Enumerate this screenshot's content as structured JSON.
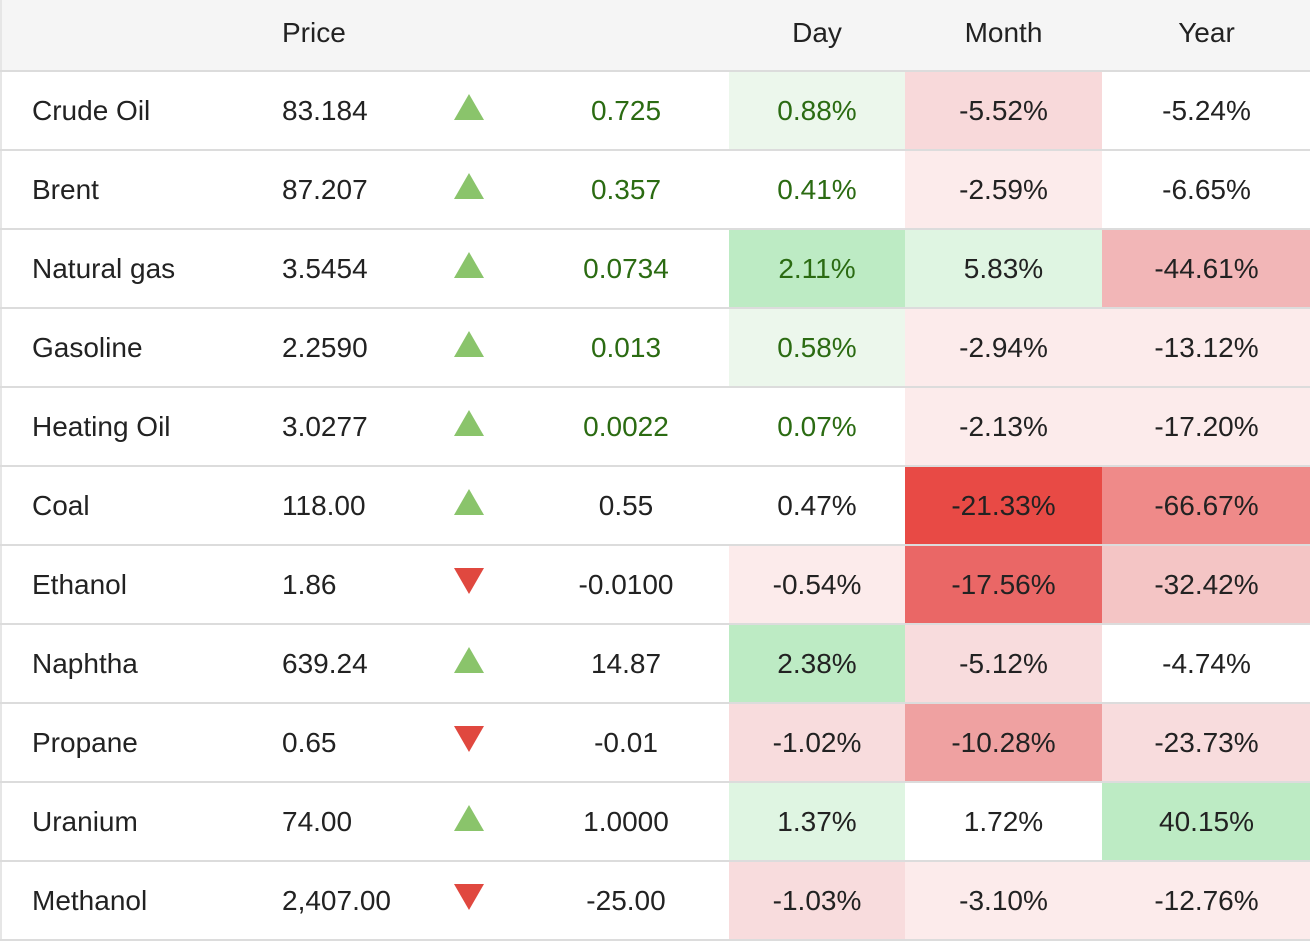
{
  "header": {
    "name": "",
    "price": "Price",
    "arrow": "",
    "change": "",
    "day": "Day",
    "month": "Month",
    "year": "Year"
  },
  "colors": {
    "up_arrow": "#8ac46b",
    "down_arrow": "#e0483f",
    "positive_text": "#2b6b12"
  },
  "rows": [
    {
      "name": "Crude Oil",
      "price": "83.184",
      "direction": "up",
      "change": "0.725",
      "day": "0.88%",
      "month": "-5.52%",
      "year": "-5.24%",
      "change_green": true,
      "day_green": true,
      "day_bg": "#ecf7ec",
      "month_bg": "#f8d9da",
      "year_bg": "#ffffff"
    },
    {
      "name": "Brent",
      "price": "87.207",
      "direction": "up",
      "change": "0.357",
      "day": "0.41%",
      "month": "-2.59%",
      "year": "-6.65%",
      "change_green": true,
      "day_green": true,
      "day_bg": "#ffffff",
      "month_bg": "#fcebeb",
      "year_bg": "#ffffff"
    },
    {
      "name": "Natural gas",
      "price": "3.5454",
      "direction": "up",
      "change": "0.0734",
      "day": "2.11%",
      "month": "5.83%",
      "year": "-44.61%",
      "change_green": true,
      "day_green": true,
      "day_bg": "#bdebc4",
      "month_bg": "#dff5e2",
      "year_bg": "#f2b6b7"
    },
    {
      "name": "Gasoline",
      "price": "2.2590",
      "direction": "up",
      "change": "0.013",
      "day": "0.58%",
      "month": "-2.94%",
      "year": "-13.12%",
      "change_green": true,
      "day_green": true,
      "day_bg": "#ecf7ec",
      "month_bg": "#fcebeb",
      "year_bg": "#fcebeb"
    },
    {
      "name": "Heating Oil",
      "price": "3.0277",
      "direction": "up",
      "change": "0.0022",
      "day": "0.07%",
      "month": "-2.13%",
      "year": "-17.20%",
      "change_green": true,
      "day_green": true,
      "day_bg": "#ffffff",
      "month_bg": "#fcebeb",
      "year_bg": "#fcebeb"
    },
    {
      "name": "Coal",
      "price": "118.00",
      "direction": "up",
      "change": "0.55",
      "day": "0.47%",
      "month": "-21.33%",
      "year": "-66.67%",
      "change_green": false,
      "day_green": false,
      "day_bg": "#ffffff",
      "month_bg": "#e84a45",
      "year_bg": "#ef8a89"
    },
    {
      "name": "Ethanol",
      "price": "1.86",
      "direction": "down",
      "change": "-0.0100",
      "day": "-0.54%",
      "month": "-17.56%",
      "year": "-32.42%",
      "change_green": false,
      "day_green": false,
      "day_bg": "#fcebeb",
      "month_bg": "#ea6766",
      "year_bg": "#f4c5c5"
    },
    {
      "name": "Naphtha",
      "price": "639.24",
      "direction": "up",
      "change": "14.87",
      "day": "2.38%",
      "month": "-5.12%",
      "year": "-4.74%",
      "change_green": false,
      "day_green": false,
      "day_bg": "#bdebc4",
      "month_bg": "#f8dcdd",
      "year_bg": "#ffffff"
    },
    {
      "name": "Propane",
      "price": "0.65",
      "direction": "down",
      "change": "-0.01",
      "day": "-1.02%",
      "month": "-10.28%",
      "year": "-23.73%",
      "change_green": false,
      "day_green": false,
      "day_bg": "#f8dcdd",
      "month_bg": "#efa1a1",
      "year_bg": "#f8dcdd"
    },
    {
      "name": "Uranium",
      "price": "74.00",
      "direction": "up",
      "change": "1.0000",
      "day": "1.37%",
      "month": "1.72%",
      "year": "40.15%",
      "change_green": false,
      "day_green": false,
      "day_bg": "#dff5e2",
      "month_bg": "#ffffff",
      "year_bg": "#bdebc4"
    },
    {
      "name": "Methanol",
      "price": "2,407.00",
      "direction": "down",
      "change": "-25.00",
      "day": "-1.03%",
      "month": "-3.10%",
      "year": "-12.76%",
      "change_green": false,
      "day_green": false,
      "day_bg": "#f8dcdd",
      "month_bg": "#fcebeb",
      "year_bg": "#fcebeb"
    }
  ]
}
